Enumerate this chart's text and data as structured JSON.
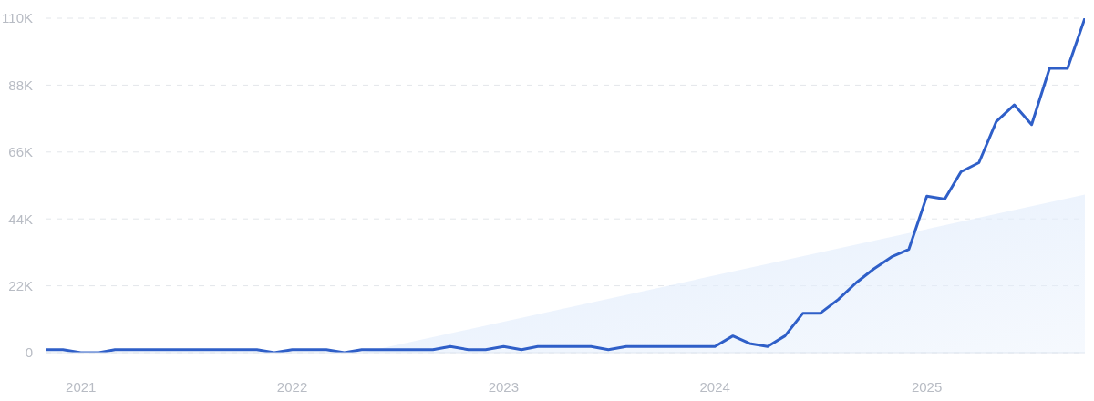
{
  "chart_data": {
    "type": "line",
    "x": [
      "2020-11",
      "2020-12",
      "2021-01",
      "2021-02",
      "2021-03",
      "2021-04",
      "2021-05",
      "2021-06",
      "2021-07",
      "2021-08",
      "2021-09",
      "2021-10",
      "2021-11",
      "2021-12",
      "2022-01",
      "2022-02",
      "2022-03",
      "2022-04",
      "2022-05",
      "2022-06",
      "2022-07",
      "2022-08",
      "2022-09",
      "2022-10",
      "2022-11",
      "2022-12",
      "2023-01",
      "2023-02",
      "2023-03",
      "2023-04",
      "2023-05",
      "2023-06",
      "2023-07",
      "2023-08",
      "2023-09",
      "2023-10",
      "2023-11",
      "2023-12",
      "2024-01",
      "2024-02",
      "2024-03",
      "2024-04",
      "2024-05",
      "2024-06",
      "2024-07",
      "2024-08",
      "2024-09",
      "2024-10",
      "2024-11",
      "2024-12",
      "2025-01",
      "2025-02",
      "2025-03",
      "2025-04",
      "2025-05",
      "2025-06",
      "2025-07",
      "2025-08",
      "2025-09",
      "2025-10"
    ],
    "series": [
      {
        "type": "area",
        "color": "#e4eefc",
        "x": [
          "2022-05",
          "2025-10"
        ],
        "values": [
          0,
          52000
        ]
      },
      {
        "color": "#2f5fc8",
        "values": [
          1000,
          1000,
          0,
          0,
          1000,
          1000,
          1000,
          1000,
          1000,
          1000,
          1000,
          1000,
          1000,
          0,
          1000,
          1000,
          1000,
          0,
          1000,
          1000,
          1000,
          1000,
          1000,
          2000,
          1000,
          1000,
          2000,
          1000,
          2000,
          2000,
          2000,
          2000,
          1000,
          2000,
          2000,
          2000,
          2000,
          2000,
          2000,
          5500,
          3000,
          2000,
          5500,
          13000,
          13000,
          17500,
          23000,
          27500,
          31500,
          34000,
          51500,
          50500,
          59500,
          62500,
          76000,
          81500,
          75000,
          93500,
          93500,
          110000
        ]
      }
    ],
    "xlim": [
      "2020-11",
      "2025-10"
    ],
    "xticks": [
      "2021",
      "2022",
      "2023",
      "2024",
      "2025"
    ],
    "ylim": [
      0,
      110000
    ],
    "yticks": [
      0,
      {
        "value": 22000,
        "label": "22K"
      },
      {
        "value": 44000,
        "label": "44K"
      },
      {
        "value": 66000,
        "label": "66K"
      },
      {
        "value": 88000,
        "label": "88K"
      },
      {
        "value": 110000,
        "label": "110K"
      }
    ],
    "grid": "y"
  }
}
